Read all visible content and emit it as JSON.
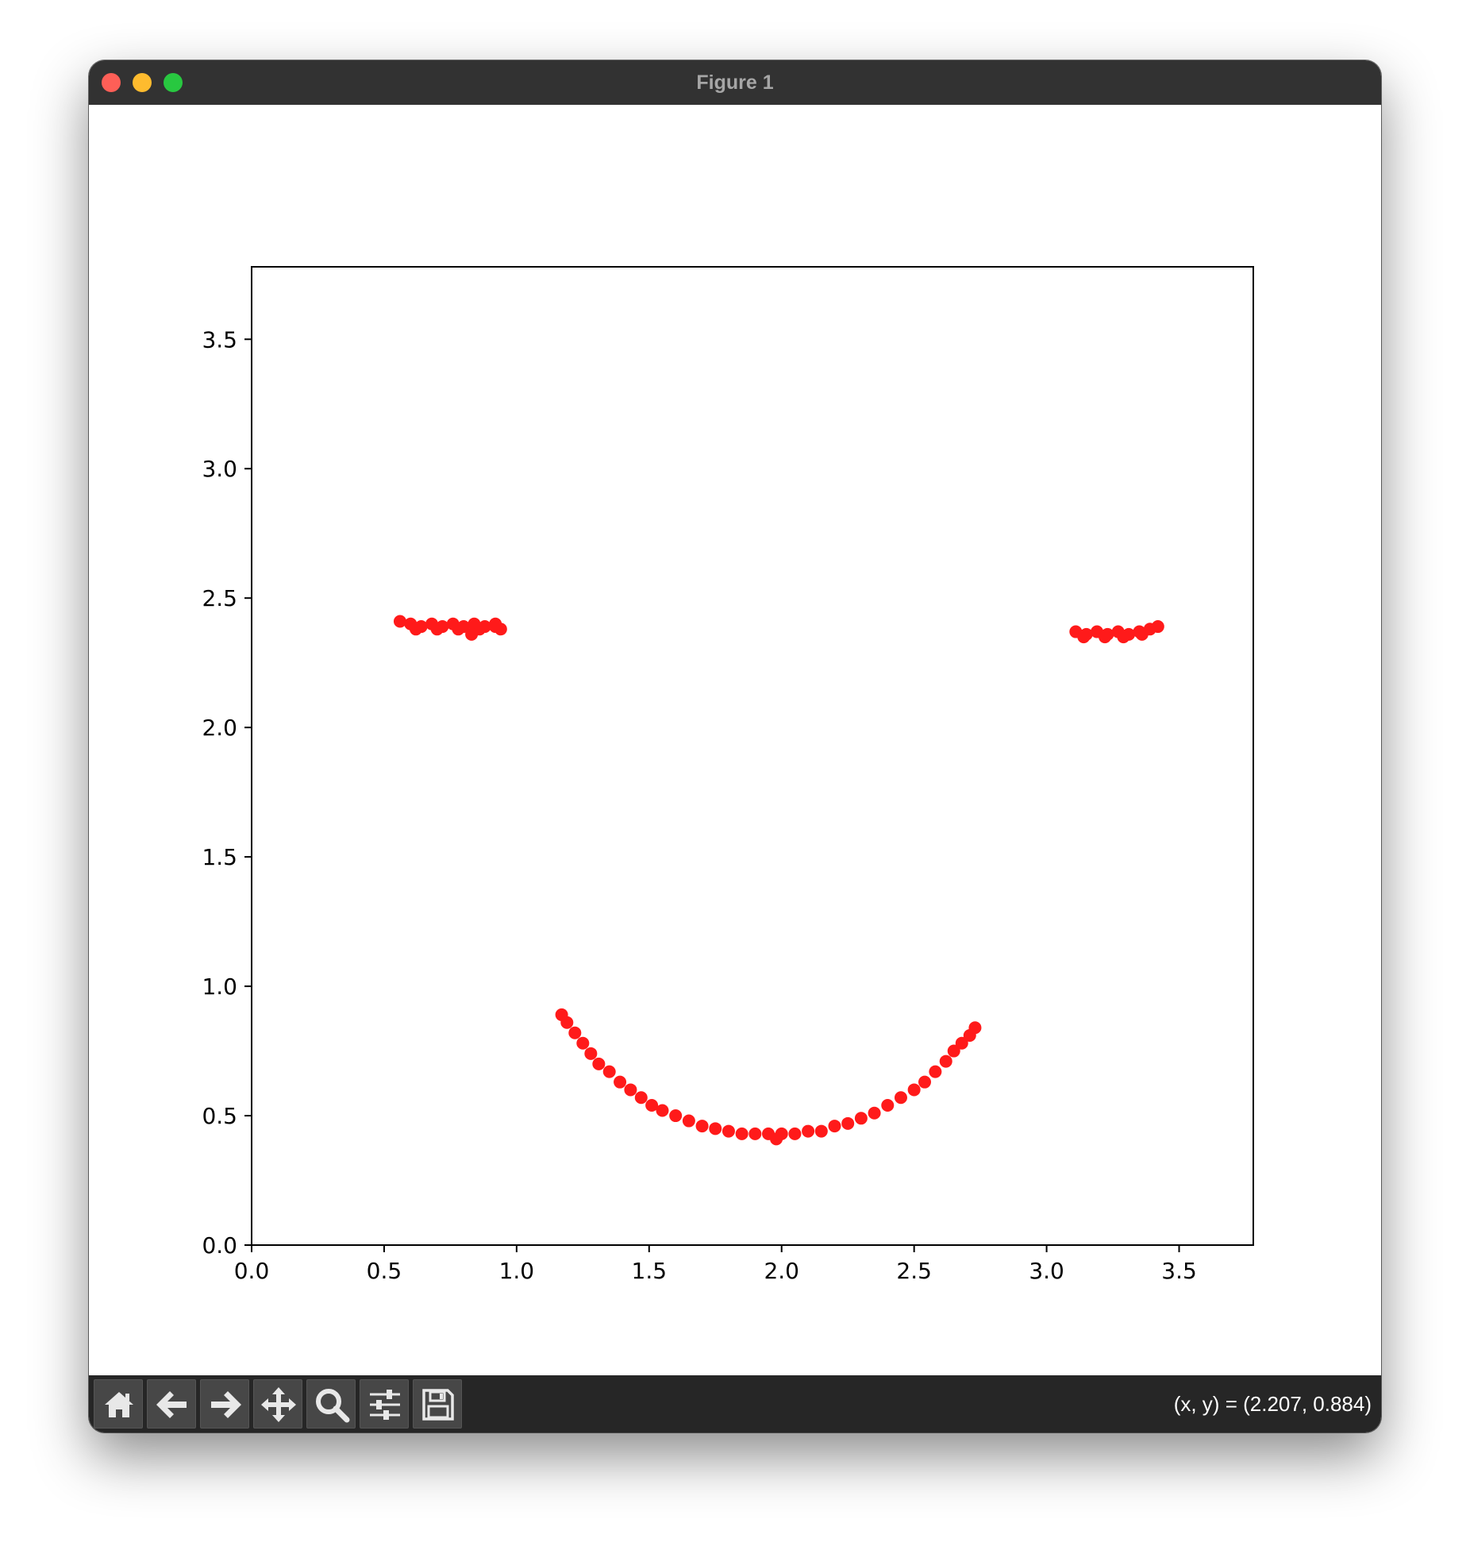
{
  "window": {
    "title": "Figure 1"
  },
  "toolbar": {
    "buttons": [
      {
        "name": "home-button",
        "icon": "home-icon"
      },
      {
        "name": "back-button",
        "icon": "arrow-left-icon"
      },
      {
        "name": "forward-button",
        "icon": "arrow-right-icon"
      },
      {
        "name": "pan-button",
        "icon": "move-icon"
      },
      {
        "name": "zoom-button",
        "icon": "magnifier-icon"
      },
      {
        "name": "configure-subplots-button",
        "icon": "sliders-icon"
      },
      {
        "name": "save-button",
        "icon": "floppy-disk-icon"
      }
    ],
    "coords_text": "(x, y) = (2.207, 0.884)"
  },
  "colors": {
    "titlebar": "#323232",
    "toolbar": "#262626",
    "marker": "#ff1a1a"
  },
  "chart_data": {
    "type": "scatter",
    "title": "",
    "xlabel": "",
    "ylabel": "",
    "xlim": [
      0,
      3.78
    ],
    "ylim": [
      0,
      3.78
    ],
    "xticks": [
      "0.0",
      "0.5",
      "1.0",
      "1.5",
      "2.0",
      "2.5",
      "3.0",
      "3.5"
    ],
    "yticks": [
      "0.0",
      "0.5",
      "1.0",
      "1.5",
      "2.0",
      "2.5",
      "3.0",
      "3.5"
    ],
    "xtick_values": [
      0,
      0.5,
      1.0,
      1.5,
      2.0,
      2.5,
      3.0,
      3.5
    ],
    "ytick_values": [
      0,
      0.5,
      1.0,
      1.5,
      2.0,
      2.5,
      3.0,
      3.5
    ],
    "grid": false,
    "series": [
      {
        "color": "#ff1a1a",
        "x": [
          0.56,
          0.6,
          0.64,
          0.68,
          0.72,
          0.76,
          0.8,
          0.84,
          0.88,
          0.92,
          0.94,
          0.62,
          0.7,
          0.78,
          0.86,
          0.92,
          0.83,
          3.11,
          3.15,
          3.19,
          3.23,
          3.27,
          3.31,
          3.35,
          3.39,
          3.42,
          3.14,
          3.22,
          3.29,
          3.36,
          1.17,
          1.19,
          1.22,
          1.25,
          1.28,
          1.31,
          1.35,
          1.39,
          1.43,
          1.47,
          1.51,
          1.55,
          1.6,
          1.65,
          1.7,
          1.75,
          1.8,
          1.85,
          1.9,
          1.95,
          1.98,
          2.0,
          2.05,
          2.1,
          2.15,
          2.2,
          2.25,
          2.3,
          2.35,
          2.4,
          2.45,
          2.5,
          2.54,
          2.58,
          2.62,
          2.65,
          2.68,
          2.71,
          2.73
        ],
        "y": [
          2.41,
          2.4,
          2.39,
          2.4,
          2.39,
          2.4,
          2.39,
          2.4,
          2.39,
          2.4,
          2.38,
          2.38,
          2.38,
          2.38,
          2.38,
          2.39,
          2.36,
          2.37,
          2.36,
          2.37,
          2.36,
          2.37,
          2.36,
          2.37,
          2.38,
          2.39,
          2.35,
          2.35,
          2.35,
          2.36,
          0.89,
          0.86,
          0.82,
          0.78,
          0.74,
          0.7,
          0.67,
          0.63,
          0.6,
          0.57,
          0.54,
          0.52,
          0.5,
          0.48,
          0.46,
          0.45,
          0.44,
          0.43,
          0.43,
          0.43,
          0.41,
          0.43,
          0.43,
          0.44,
          0.44,
          0.46,
          0.47,
          0.49,
          0.51,
          0.54,
          0.57,
          0.6,
          0.63,
          0.67,
          0.71,
          0.75,
          0.78,
          0.81,
          0.84
        ]
      }
    ]
  }
}
